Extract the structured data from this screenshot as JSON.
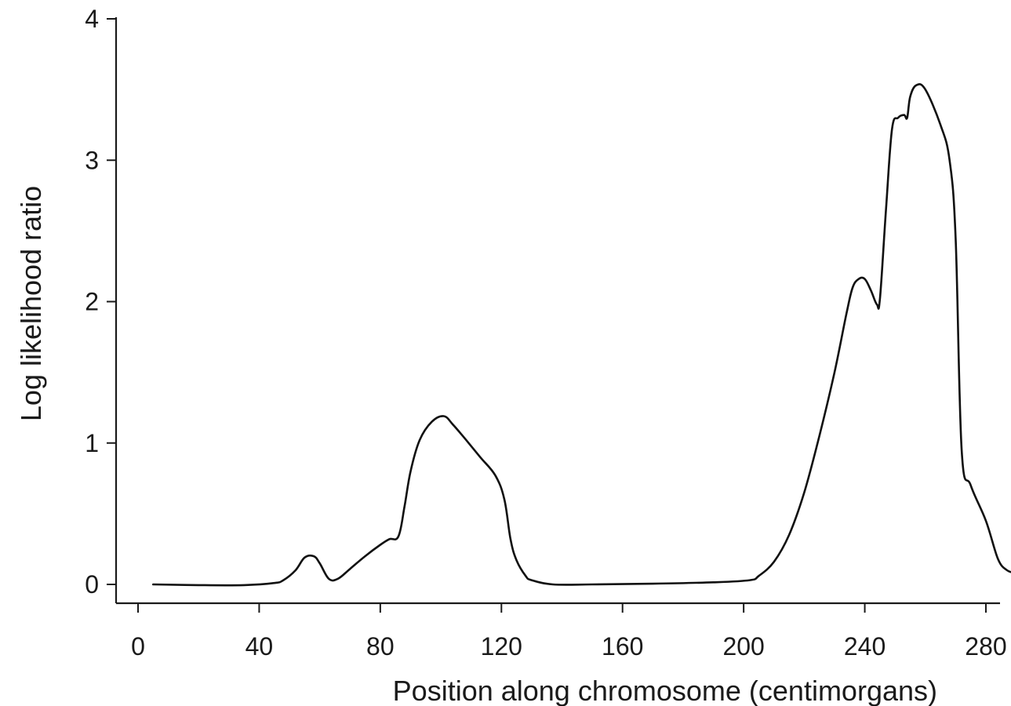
{
  "chart_data": {
    "type": "line",
    "title": "",
    "xlabel": "Position along chromosome (centimorgans)",
    "ylabel": "Log likelihood ratio",
    "xlim": [
      -2,
      290
    ],
    "ylim": [
      -0.13,
      4
    ],
    "x_ticks": [
      0,
      40,
      80,
      120,
      160,
      200,
      240,
      280
    ],
    "y_ticks": [
      0,
      1,
      2,
      3,
      4
    ],
    "x_tick_labels": [
      "0",
      "40",
      "80",
      "120",
      "160",
      "200",
      "240",
      "280"
    ],
    "y_tick_labels": [
      "0",
      "1",
      "2",
      "3",
      "4"
    ],
    "grid": false,
    "legend": "none",
    "line_color": "#111111",
    "series": [
      {
        "x": [
          5,
          20,
          35,
          45,
          48,
          52,
          55,
          58,
          60,
          63,
          66,
          70,
          75,
          80,
          83,
          86,
          88,
          90,
          93,
          97,
          101,
          104,
          108,
          113,
          118,
          121,
          123,
          125,
          128,
          130,
          137,
          150,
          170,
          190,
          202,
          205,
          210,
          215,
          220,
          225,
          230,
          234,
          236,
          238,
          240,
          242,
          244,
          245,
          247,
          249,
          251,
          253,
          254,
          255,
          257,
          260,
          265,
          268,
          270,
          272,
          275,
          280,
          284,
          287,
          290
        ],
        "y": [
          0.0,
          -0.005,
          -0.005,
          0.01,
          0.03,
          0.1,
          0.19,
          0.2,
          0.15,
          0.04,
          0.04,
          0.11,
          0.2,
          0.28,
          0.32,
          0.34,
          0.55,
          0.8,
          1.02,
          1.15,
          1.19,
          1.13,
          1.03,
          0.9,
          0.77,
          0.6,
          0.32,
          0.17,
          0.06,
          0.03,
          0.0,
          0.0,
          0.005,
          0.015,
          0.03,
          0.06,
          0.16,
          0.35,
          0.65,
          1.05,
          1.5,
          1.92,
          2.1,
          2.16,
          2.16,
          2.08,
          1.98,
          2.02,
          2.65,
          3.22,
          3.3,
          3.32,
          3.3,
          3.45,
          3.53,
          3.5,
          3.25,
          3.0,
          2.45,
          0.95,
          0.7,
          0.45,
          0.18,
          0.1,
          0.08
        ]
      }
    ]
  }
}
